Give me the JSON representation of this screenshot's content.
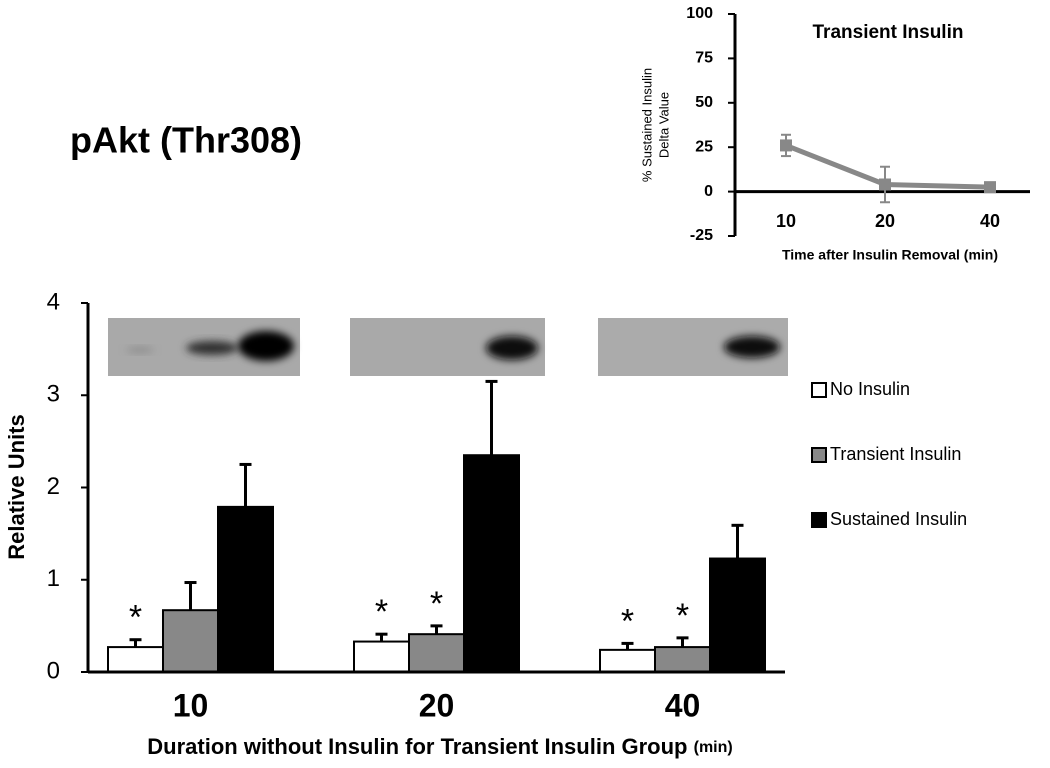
{
  "chart_data": [
    {
      "type": "bar",
      "title": "pAkt (Thr308)",
      "xlabel": "Duration without Insulin for Transient Insulin Group",
      "xlabel_unit": "(min)",
      "ylabel": "Relative Units",
      "categories": [
        "10",
        "20",
        "40"
      ],
      "series": [
        {
          "name": "No Insulin",
          "color": "#ffffff",
          "values": [
            0.27,
            0.33,
            0.24
          ],
          "errors": [
            0.08,
            0.08,
            0.07
          ],
          "annotations": [
            "*",
            "*",
            "*"
          ]
        },
        {
          "name": "Transient Insulin",
          "color": "#888888",
          "values": [
            0.67,
            0.41,
            0.27
          ],
          "errors": [
            0.3,
            0.09,
            0.1
          ],
          "annotations": [
            null,
            "*",
            "*"
          ]
        },
        {
          "name": "Sustained Insulin",
          "color": "#000000",
          "values": [
            1.79,
            2.35,
            1.23
          ],
          "errors": [
            0.46,
            0.8,
            0.36
          ],
          "annotations": [
            null,
            null,
            null
          ]
        }
      ],
      "ylim": [
        0,
        4
      ],
      "yticks": [
        0,
        1,
        2,
        3,
        4
      ],
      "legend": "right"
    },
    {
      "type": "line",
      "title": "Transient Insulin",
      "xlabel": "Time after Insulin Removal (min)",
      "ylabel": [
        "% Sustained Insulin",
        "Delta Value"
      ],
      "categories": [
        "10",
        "20",
        "40"
      ],
      "series": [
        {
          "color": "#888888",
          "values": [
            26,
            4,
            2.5
          ],
          "errors": [
            6,
            10,
            2
          ]
        }
      ],
      "ylim": [
        -25,
        100
      ],
      "yticks": [
        -25,
        0,
        25,
        50,
        75,
        100
      ]
    }
  ]
}
